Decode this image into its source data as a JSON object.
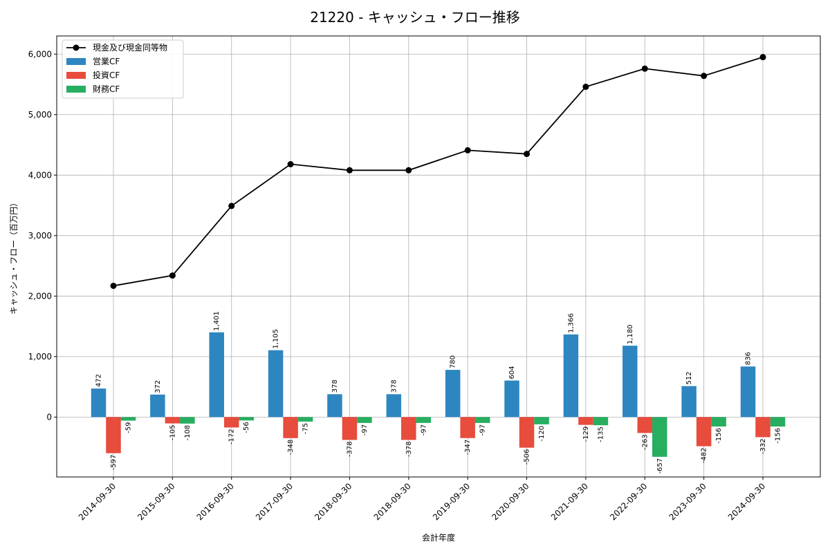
{
  "chart_data": {
    "type": "bar",
    "title": "21220 - キャッシュ・フロー推移",
    "xlabel": "会計年度",
    "ylabel": "キャッシュ・フロー（百万円）",
    "ylim": [
      -990,
      6300
    ],
    "y_ticks": [
      0,
      1000,
      2000,
      3000,
      4000,
      5000,
      6000
    ],
    "y_tick_labels": [
      "0",
      "1,000",
      "2,000",
      "3,000",
      "4,000",
      "5,000",
      "6,000"
    ],
    "grid": true,
    "legend_position": "top-left",
    "categories": [
      "2014-09-30",
      "2015-09-30",
      "2016-09-30",
      "2017-09-30",
      "2018-09-30",
      "2018-09-30",
      "2019-09-30",
      "2020-09-30",
      "2021-09-30",
      "2022-09-30",
      "2023-09-30",
      "2024-09-30"
    ],
    "series": [
      {
        "name": "営業CF",
        "kind": "bar",
        "color": "#2e86c1",
        "values": [
          472,
          372,
          1401,
          1105,
          378,
          378,
          780,
          604,
          1366,
          1180,
          512,
          836
        ],
        "labels": [
          "472",
          "372",
          "1,401",
          "1,105",
          "378",
          "378",
          "780",
          "604",
          "1,366",
          "1,180",
          "512",
          "836"
        ]
      },
      {
        "name": "投資CF",
        "kind": "bar",
        "color": "#e74c3c",
        "values": [
          -597,
          -105,
          -172,
          -348,
          -378,
          -378,
          -347,
          -506,
          -129,
          -263,
          -482,
          -332
        ],
        "labels": [
          "-597",
          "-105",
          "-172",
          "-348",
          "-378",
          "-378",
          "-347",
          "-506",
          "-129",
          "-263",
          "-482",
          "-332"
        ]
      },
      {
        "name": "財務CF",
        "kind": "bar",
        "color": "#27ae60",
        "values": [
          -59,
          -108,
          -56,
          -75,
          -97,
          -97,
          -97,
          -120,
          -135,
          -657,
          -156,
          -156
        ],
        "labels": [
          "-59",
          "-108",
          "-56",
          "-75",
          "-97",
          "-97",
          "-97",
          "-120",
          "-135",
          "-657",
          "-156",
          "-156"
        ]
      },
      {
        "name": "現金及び現金同等物",
        "kind": "line",
        "color": "#000000",
        "values": [
          2170,
          2340,
          3490,
          4180,
          4080,
          4080,
          4410,
          4350,
          5460,
          5760,
          5640,
          5950
        ]
      }
    ],
    "legend_order": [
      "現金及び現金同等物",
      "営業CF",
      "投資CF",
      "財務CF"
    ]
  }
}
